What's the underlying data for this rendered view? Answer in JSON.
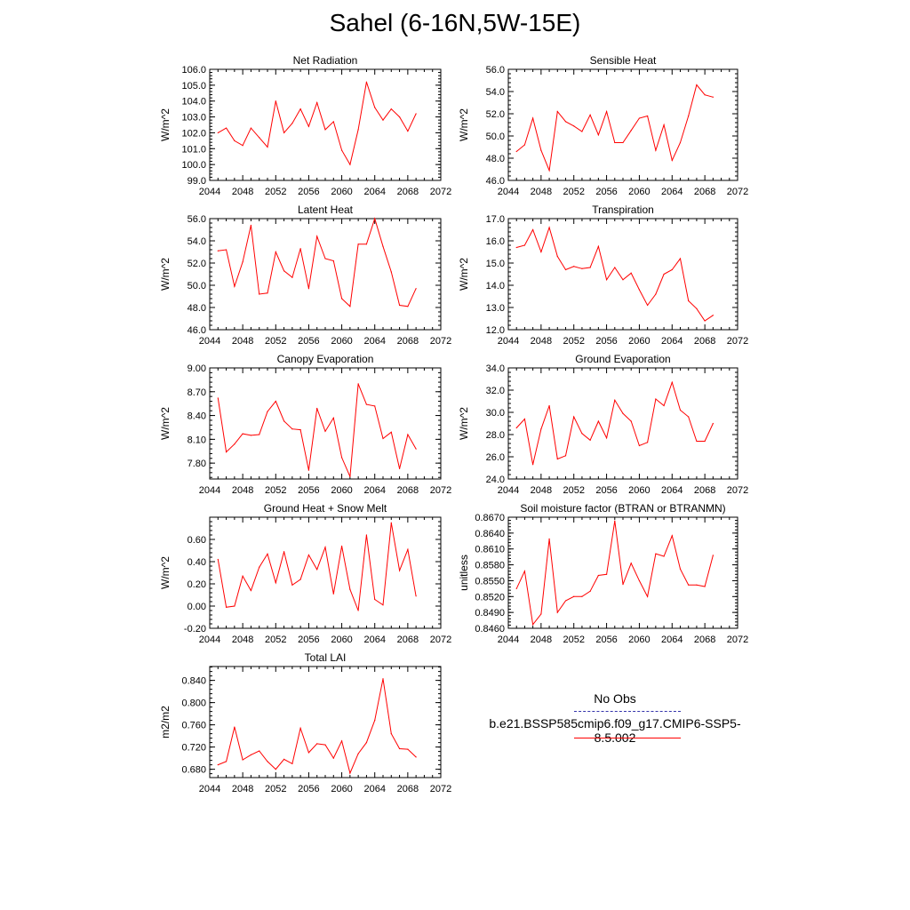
{
  "title": "Sahel (6-16N,5W-15E)",
  "colors": {
    "series": "#ff0000",
    "obs": "#3333aa",
    "axis": "#000000"
  },
  "chart_data": [
    {
      "type": "line",
      "title": "Net Radiation",
      "ylabel": "W/m^2",
      "xlim": [
        2044,
        2072
      ],
      "xticks": [
        "2044",
        "2048",
        "2052",
        "2056",
        "2060",
        "2064",
        "2068",
        "2072"
      ],
      "ylim": [
        99.0,
        106.0
      ],
      "yticks": [
        "99.0",
        "100.0",
        "101.0",
        "102.0",
        "103.0",
        "104.0",
        "105.0",
        "106.0"
      ],
      "x": [
        2045,
        2046,
        2047,
        2048,
        2049,
        2050,
        2051,
        2052,
        2053,
        2054,
        2055,
        2056,
        2057,
        2058,
        2059,
        2060,
        2061,
        2062,
        2063,
        2064,
        2065,
        2066,
        2067,
        2068,
        2069
      ],
      "series": [
        {
          "values": [
            102.0,
            102.3,
            101.5,
            101.2,
            102.3,
            101.7,
            101.1,
            104.0,
            102.0,
            102.6,
            103.5,
            102.4,
            103.9,
            102.2,
            102.7,
            100.9,
            100.0,
            102.2,
            105.2,
            103.6,
            102.8,
            103.5,
            103.0,
            102.1,
            103.2
          ]
        }
      ]
    },
    {
      "type": "line",
      "title": "Sensible Heat",
      "ylabel": "W/m^2",
      "xlim": [
        2044,
        2072
      ],
      "xticks": [
        "2044",
        "2048",
        "2052",
        "2056",
        "2060",
        "2064",
        "2068",
        "2072"
      ],
      "ylim": [
        46.0,
        56.0
      ],
      "yticks": [
        "46.0",
        "48.0",
        "50.0",
        "52.0",
        "54.0",
        "56.0"
      ],
      "x": [
        2045,
        2046,
        2047,
        2048,
        2049,
        2050,
        2051,
        2052,
        2053,
        2054,
        2055,
        2056,
        2057,
        2058,
        2059,
        2060,
        2061,
        2062,
        2063,
        2064,
        2065,
        2066,
        2067,
        2068,
        2069
      ],
      "series": [
        {
          "values": [
            48.6,
            49.2,
            51.6,
            48.7,
            46.9,
            52.2,
            51.3,
            50.9,
            50.4,
            51.9,
            50.1,
            52.2,
            49.4,
            49.4,
            50.5,
            51.6,
            51.8,
            48.7,
            51.0,
            47.8,
            49.4,
            51.8,
            54.6,
            53.7,
            53.5
          ]
        }
      ]
    },
    {
      "type": "line",
      "title": "Latent Heat",
      "ylabel": "W/m^2",
      "xlim": [
        2044,
        2072
      ],
      "xticks": [
        "2044",
        "2048",
        "2052",
        "2056",
        "2060",
        "2064",
        "2068",
        "2072"
      ],
      "ylim": [
        46.0,
        56.0
      ],
      "yticks": [
        "46.0",
        "48.0",
        "50.0",
        "52.0",
        "54.0",
        "56.0"
      ],
      "x": [
        2045,
        2046,
        2047,
        2048,
        2049,
        2050,
        2051,
        2052,
        2053,
        2054,
        2055,
        2056,
        2057,
        2058,
        2059,
        2060,
        2061,
        2062,
        2063,
        2064,
        2065,
        2066,
        2067,
        2068,
        2069
      ],
      "series": [
        {
          "values": [
            53.1,
            53.2,
            49.9,
            52.1,
            55.4,
            49.2,
            49.3,
            53.0,
            51.3,
            50.7,
            53.3,
            49.7,
            54.4,
            52.4,
            52.2,
            48.8,
            48.1,
            53.7,
            53.7,
            56.0,
            53.5,
            51.2,
            48.2,
            48.1,
            49.7
          ]
        }
      ]
    },
    {
      "type": "line",
      "title": "Transpiration",
      "ylabel": "W/m^2",
      "xlim": [
        2044,
        2072
      ],
      "xticks": [
        "2044",
        "2048",
        "2052",
        "2056",
        "2060",
        "2064",
        "2068",
        "2072"
      ],
      "ylim": [
        12.0,
        17.0
      ],
      "yticks": [
        "12.0",
        "13.0",
        "14.0",
        "15.0",
        "16.0",
        "17.0"
      ],
      "x": [
        2045,
        2046,
        2047,
        2048,
        2049,
        2050,
        2051,
        2052,
        2053,
        2054,
        2055,
        2056,
        2057,
        2058,
        2059,
        2060,
        2061,
        2062,
        2063,
        2064,
        2065,
        2066,
        2067,
        2068,
        2069
      ],
      "series": [
        {
          "values": [
            15.7,
            15.8,
            16.5,
            15.5,
            16.6,
            15.3,
            14.7,
            14.85,
            14.75,
            14.8,
            15.75,
            14.25,
            14.8,
            14.25,
            14.55,
            13.8,
            13.1,
            13.6,
            14.5,
            14.7,
            15.2,
            13.3,
            12.95,
            12.4,
            12.65
          ]
        }
      ]
    },
    {
      "type": "line",
      "title": "Canopy Evaporation",
      "ylabel": "W/m^2",
      "xlim": [
        2044,
        2072
      ],
      "xticks": [
        "2044",
        "2048",
        "2052",
        "2056",
        "2060",
        "2064",
        "2068",
        "2072"
      ],
      "ylim": [
        7.6,
        9.0
      ],
      "yticks": [
        "7.80",
        "8.10",
        "8.40",
        "8.70",
        "9.00"
      ],
      "ytick_values": [
        7.8,
        8.1,
        8.4,
        8.7,
        9.0
      ],
      "x": [
        2045,
        2046,
        2047,
        2048,
        2049,
        2050,
        2051,
        2052,
        2053,
        2054,
        2055,
        2056,
        2057,
        2058,
        2059,
        2060,
        2061,
        2062,
        2063,
        2064,
        2065,
        2066,
        2067,
        2068,
        2069
      ],
      "series": [
        {
          "values": [
            8.62,
            7.94,
            8.04,
            8.17,
            8.15,
            8.16,
            8.45,
            8.58,
            8.33,
            8.23,
            8.22,
            7.71,
            8.49,
            8.2,
            8.37,
            7.87,
            7.63,
            8.8,
            8.54,
            8.52,
            8.11,
            8.19,
            7.73,
            8.16,
            7.98
          ]
        }
      ]
    },
    {
      "type": "line",
      "title": "Ground Evaporation",
      "ylabel": "W/m^2",
      "xlim": [
        2044,
        2072
      ],
      "xticks": [
        "2044",
        "2048",
        "2052",
        "2056",
        "2060",
        "2064",
        "2068",
        "2072"
      ],
      "ylim": [
        24.0,
        34.0
      ],
      "yticks": [
        "24.0",
        "26.0",
        "28.0",
        "30.0",
        "32.0",
        "34.0"
      ],
      "x": [
        2045,
        2046,
        2047,
        2048,
        2049,
        2050,
        2051,
        2052,
        2053,
        2054,
        2055,
        2056,
        2057,
        2058,
        2059,
        2060,
        2061,
        2062,
        2063,
        2064,
        2065,
        2066,
        2067,
        2068,
        2069
      ],
      "series": [
        {
          "values": [
            28.6,
            29.4,
            25.3,
            28.5,
            30.6,
            25.8,
            26.1,
            29.6,
            28.1,
            27.5,
            29.2,
            27.7,
            31.1,
            29.9,
            29.2,
            27.0,
            27.3,
            31.2,
            30.6,
            32.7,
            30.2,
            29.6,
            27.4,
            27.4,
            29.0
          ]
        }
      ]
    },
    {
      "type": "line",
      "title": "Ground Heat + Snow Melt",
      "ylabel": "W/m^2",
      "xlim": [
        2044,
        2072
      ],
      "xticks": [
        "2044",
        "2048",
        "2052",
        "2056",
        "2060",
        "2064",
        "2068",
        "2072"
      ],
      "ylim": [
        -0.2,
        0.8
      ],
      "yticks": [
        "-0.20",
        "0.00",
        "0.20",
        "0.40",
        "0.60"
      ],
      "ytick_values": [
        -0.2,
        0.0,
        0.2,
        0.4,
        0.6
      ],
      "x": [
        2045,
        2046,
        2047,
        2048,
        2049,
        2050,
        2051,
        2052,
        2053,
        2054,
        2055,
        2056,
        2057,
        2058,
        2059,
        2060,
        2061,
        2062,
        2063,
        2064,
        2065,
        2066,
        2067,
        2068,
        2069
      ],
      "series": [
        {
          "values": [
            0.42,
            -0.01,
            0.0,
            0.27,
            0.14,
            0.35,
            0.47,
            0.21,
            0.49,
            0.19,
            0.24,
            0.46,
            0.33,
            0.53,
            0.11,
            0.54,
            0.15,
            -0.04,
            0.64,
            0.06,
            0.01,
            0.75,
            0.32,
            0.51,
            0.09
          ]
        }
      ]
    },
    {
      "type": "line",
      "title": "Soil moisture factor (BTRAN or BTRANMN)",
      "ylabel": "unitless",
      "xlim": [
        2044,
        2072
      ],
      "xticks": [
        "2044",
        "2048",
        "2052",
        "2056",
        "2060",
        "2064",
        "2068",
        "2072"
      ],
      "ylim": [
        0.846,
        0.867
      ],
      "yticks": [
        "0.8460",
        "0.8490",
        "0.8520",
        "0.8550",
        "0.8580",
        "0.8610",
        "0.8640",
        "0.8670"
      ],
      "x": [
        2045,
        2046,
        2047,
        2048,
        2049,
        2050,
        2051,
        2052,
        2053,
        2054,
        2055,
        2056,
        2057,
        2058,
        2059,
        2060,
        2061,
        2062,
        2063,
        2064,
        2065,
        2066,
        2067,
        2068,
        2069
      ],
      "series": [
        {
          "values": [
            0.8535,
            0.8568,
            0.8467,
            0.8487,
            0.8629,
            0.849,
            0.8512,
            0.852,
            0.852,
            0.853,
            0.856,
            0.8562,
            0.8663,
            0.8543,
            0.8583,
            0.855,
            0.852,
            0.8601,
            0.8596,
            0.8635,
            0.8572,
            0.8542,
            0.8542,
            0.8539,
            0.8598
          ]
        }
      ]
    },
    {
      "type": "line",
      "title": "Total LAI",
      "ylabel": "m2/m2",
      "xlim": [
        2044,
        2072
      ],
      "xticks": [
        "2044",
        "2048",
        "2052",
        "2056",
        "2060",
        "2064",
        "2068",
        "2072"
      ],
      "ylim": [
        0.665,
        0.865
      ],
      "yticks": [
        "0.680",
        "0.720",
        "0.760",
        "0.800",
        "0.840"
      ],
      "ytick_values": [
        0.68,
        0.72,
        0.76,
        0.8,
        0.84
      ],
      "x": [
        2045,
        2046,
        2047,
        2048,
        2049,
        2050,
        2051,
        2052,
        2053,
        2054,
        2055,
        2056,
        2057,
        2058,
        2059,
        2060,
        2061,
        2062,
        2063,
        2064,
        2065,
        2066,
        2067,
        2068,
        2069
      ],
      "series": [
        {
          "values": [
            0.688,
            0.694,
            0.756,
            0.697,
            0.706,
            0.713,
            0.694,
            0.68,
            0.698,
            0.69,
            0.754,
            0.71,
            0.726,
            0.724,
            0.7,
            0.731,
            0.673,
            0.708,
            0.728,
            0.768,
            0.843,
            0.744,
            0.717,
            0.716,
            0.702
          ]
        }
      ]
    }
  ],
  "legend": {
    "obs_label": "No Obs",
    "model_label": "b.e21.BSSP585cmip6.f09_g17.CMIP6-SSP5-8.5.002"
  }
}
